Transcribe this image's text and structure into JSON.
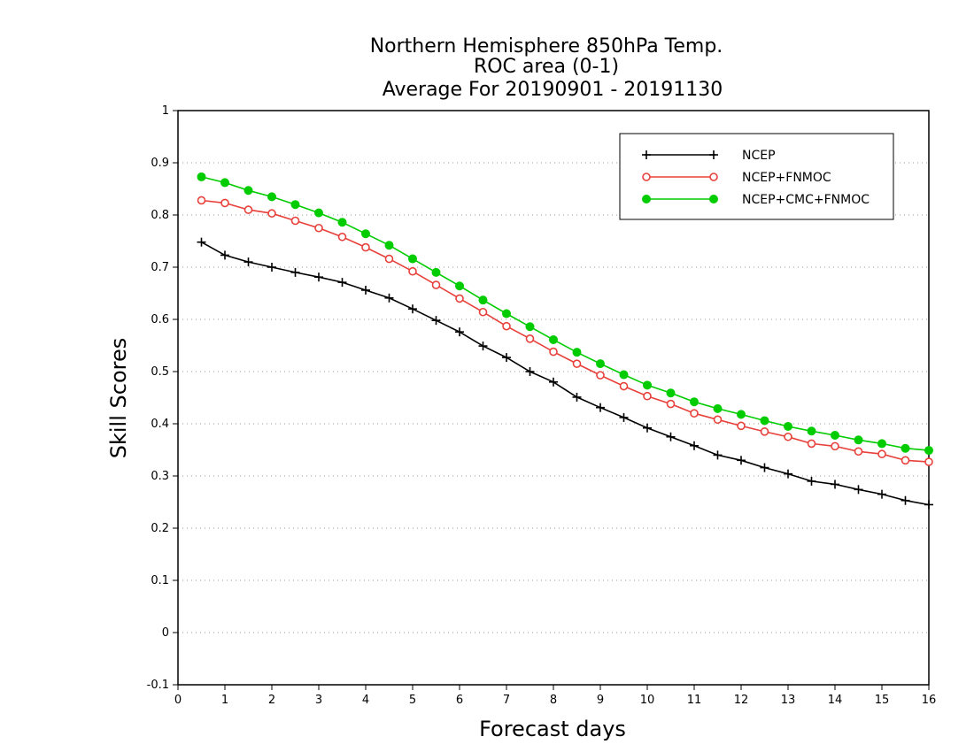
{
  "chart_data": {
    "type": "line",
    "title": [
      "Northern Hemisphere 850hPa Temp.",
      "ROC area (0-1)",
      "Average For 20190901 - 20191130"
    ],
    "xlabel": "Forecast days",
    "ylabel": "Skill Scores",
    "xlim": [
      0,
      16
    ],
    "ylim": [
      -0.1,
      1
    ],
    "x_ticks": [
      0,
      1,
      2,
      3,
      4,
      5,
      6,
      7,
      8,
      9,
      10,
      11,
      12,
      13,
      14,
      15,
      16
    ],
    "y_ticks": [
      -0.1,
      0,
      0.1,
      0.2,
      0.3,
      0.4,
      0.5,
      0.6,
      0.7,
      0.8,
      0.9,
      1
    ],
    "y_tick_labels": [
      "-0.1",
      "0",
      "0.1",
      "0.2",
      "0.3",
      "0.4",
      "0.5",
      "0.6",
      "0.7",
      "0.8",
      "0.9",
      "1"
    ],
    "grid": true,
    "legend_position": "top-right",
    "x": [
      0.5,
      1,
      1.5,
      2,
      2.5,
      3,
      3.5,
      4,
      4.5,
      5,
      5.5,
      6,
      6.5,
      7,
      7.5,
      8,
      8.5,
      9,
      9.5,
      10,
      10.5,
      11,
      11.5,
      12,
      12.5,
      13,
      13.5,
      14,
      14.5,
      15,
      15.5,
      16
    ],
    "series": [
      {
        "name": "NCEP",
        "color": "#000000",
        "marker": "plus",
        "values": [
          0.748,
          0.723,
          0.71,
          0.7,
          0.69,
          0.681,
          0.671,
          0.656,
          0.641,
          0.62,
          0.598,
          0.576,
          0.549,
          0.527,
          0.5,
          0.48,
          0.451,
          0.431,
          0.412,
          0.392,
          0.375,
          0.358,
          0.34,
          0.33,
          0.316,
          0.304,
          0.29,
          0.284,
          0.274,
          0.265,
          0.253,
          0.245
        ]
      },
      {
        "name": "NCEP+FNMOC",
        "color": "#e8403a",
        "marker": "open-circle",
        "values": [
          0.828,
          0.823,
          0.81,
          0.803,
          0.789,
          0.775,
          0.758,
          0.738,
          0.716,
          0.692,
          0.666,
          0.64,
          0.614,
          0.587,
          0.563,
          0.538,
          0.515,
          0.493,
          0.472,
          0.453,
          0.438,
          0.42,
          0.408,
          0.396,
          0.385,
          0.375,
          0.362,
          0.357,
          0.347,
          0.342,
          0.33,
          0.327
        ]
      },
      {
        "name": "NCEP+CMC+FNMOC",
        "color": "#00cc00",
        "marker": "filled-circle",
        "values": [
          0.873,
          0.862,
          0.847,
          0.835,
          0.82,
          0.804,
          0.786,
          0.764,
          0.742,
          0.716,
          0.69,
          0.664,
          0.637,
          0.611,
          0.586,
          0.561,
          0.537,
          0.515,
          0.494,
          0.474,
          0.459,
          0.442,
          0.429,
          0.418,
          0.406,
          0.395,
          0.386,
          0.378,
          0.369,
          0.362,
          0.353,
          0.349
        ]
      }
    ]
  }
}
